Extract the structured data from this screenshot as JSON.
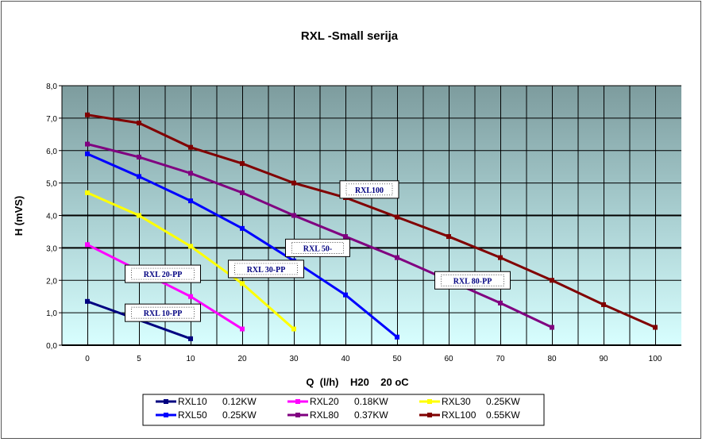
{
  "chart_data": {
    "type": "line",
    "title": "RXL -Small serija",
    "xlabel": "Q  (l/h)    H20    20 oC",
    "ylabel": "H (mVS)",
    "categories": [
      "0",
      "5",
      "10",
      "20",
      "30",
      "40",
      "50",
      "60",
      "70",
      "80",
      "90",
      "100"
    ],
    "y_ticks": [
      "0,0",
      "1,0",
      "2,0",
      "3,0",
      "4,0",
      "5,0",
      "6,0",
      "7,0",
      "8,0"
    ],
    "ylim": [
      0,
      8
    ],
    "grid": true,
    "legend_position": "bottom",
    "series": [
      {
        "name": "RXL10",
        "power": "0.12KW",
        "color": "#000080",
        "x": [
          0,
          10
        ],
        "y": [
          1.35,
          0.2
        ]
      },
      {
        "name": "RXL20",
        "power": "0.18KW",
        "color": "#ff00ff",
        "x": [
          0,
          10,
          20
        ],
        "y": [
          3.1,
          1.5,
          0.5
        ]
      },
      {
        "name": "RXL30",
        "power": "0.25KW",
        "color": "#ffff00",
        "x": [
          0,
          5,
          10,
          20,
          30
        ],
        "y": [
          4.7,
          4.0,
          3.05,
          1.9,
          0.5
        ]
      },
      {
        "name": "RXL50",
        "power": "0.25KW",
        "color": "#0000ff",
        "x": [
          0,
          5,
          10,
          20,
          30,
          40,
          50
        ],
        "y": [
          5.9,
          5.2,
          4.45,
          3.6,
          2.6,
          1.55,
          0.25
        ]
      },
      {
        "name": "RXL80",
        "power": "0.37KW",
        "color": "#800080",
        "x": [
          0,
          5,
          10,
          20,
          30,
          40,
          50,
          60,
          70,
          80
        ],
        "y": [
          6.2,
          5.8,
          5.3,
          4.7,
          4.0,
          3.35,
          2.7,
          2.0,
          1.3,
          0.55
        ]
      },
      {
        "name": "RXL100",
        "power": "0.55KW",
        "color": "#800000",
        "x": [
          0,
          5,
          10,
          20,
          30,
          40,
          50,
          60,
          70,
          80,
          90,
          100
        ],
        "y": [
          7.1,
          6.85,
          6.1,
          5.6,
          5.0,
          4.55,
          3.95,
          3.35,
          2.7,
          2.0,
          1.25,
          0.55
        ]
      }
    ],
    "annotations": [
      {
        "text": "RXL100",
        "x": 40,
        "y": 4.8
      },
      {
        "text": "RXL 50-",
        "x": 30,
        "y": 3.0
      },
      {
        "text": "RXL 80-PP",
        "x": 60,
        "y": 2.0
      },
      {
        "text": "RXL 30-PP",
        "x": 20,
        "y": 2.35
      },
      {
        "text": "RXL 20-PP",
        "x": 5,
        "y": 2.2
      },
      {
        "text": "RXL 10-PP",
        "x": 5,
        "y": 1.0
      }
    ]
  }
}
